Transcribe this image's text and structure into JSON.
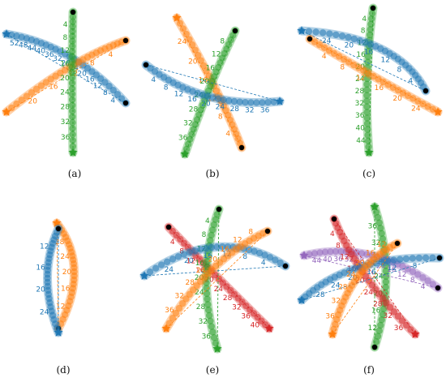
{
  "colors": {
    "blue": "#1f77b4",
    "orange": "#ff7f0e",
    "green": "#2ca02c",
    "red": "#d62728",
    "purple": "#9467bd",
    "black": "#000000"
  },
  "panels": [
    {
      "id": "a",
      "caption": "(a)",
      "paths": [
        {
          "color": "blue",
          "labels": [
            "52",
            "48",
            "44",
            "40",
            "36",
            "32",
            "28",
            "24",
            "20",
            "16",
            "12",
            "8",
            "4"
          ]
        },
        {
          "color": "orange",
          "labels": [
            "20",
            "16",
            "12",
            "8",
            "4"
          ]
        },
        {
          "color": "green",
          "labels": [
            "4",
            "8",
            "12",
            "16",
            "20",
            "24",
            "28",
            "32",
            "36"
          ]
        }
      ]
    },
    {
      "id": "b",
      "caption": "(b)",
      "paths": [
        {
          "color": "orange",
          "labels": [
            "24",
            "20",
            "16",
            "12",
            "8",
            "4"
          ]
        },
        {
          "color": "green",
          "labels": [
            "8",
            "12",
            "16",
            "20",
            "24",
            "28",
            "32",
            "36"
          ]
        },
        {
          "color": "blue",
          "labels": [
            "4",
            "8",
            "12",
            "16",
            "20",
            "24",
            "28",
            "32",
            "36"
          ]
        }
      ]
    },
    {
      "id": "c",
      "caption": "(c)",
      "paths": [
        {
          "color": "green",
          "labels": [
            "4",
            "8",
            "12",
            "16",
            "20",
            "24",
            "28",
            "32",
            "36",
            "40",
            "44"
          ]
        },
        {
          "color": "blue",
          "labels": [
            "24",
            "20",
            "16",
            "12",
            "8",
            "4"
          ]
        },
        {
          "color": "orange",
          "labels": [
            "4",
            "8",
            "12",
            "16",
            "20",
            "24"
          ]
        }
      ]
    },
    {
      "id": "d",
      "caption": "(d)",
      "paths": [
        {
          "color": "orange",
          "labels": [
            "28",
            "24",
            "20",
            "16",
            "12"
          ]
        },
        {
          "color": "blue",
          "labels": [
            "12",
            "16",
            "20",
            "24"
          ]
        }
      ]
    },
    {
      "id": "e",
      "caption": "(e)",
      "paths": [
        {
          "color": "red",
          "labels": [
            "4",
            "8",
            "12",
            "16",
            "20",
            "24",
            "28",
            "32",
            "36",
            "40"
          ]
        },
        {
          "color": "green",
          "labels": [
            "4",
            "8",
            "12",
            "16",
            "20",
            "24",
            "28",
            "32",
            "36"
          ]
        },
        {
          "color": "blue",
          "labels": [
            "24",
            "20",
            "16",
            "12",
            "8",
            "4"
          ]
        },
        {
          "color": "orange",
          "labels": [
            "8",
            "12",
            "16",
            "20",
            "24",
            "28",
            "32",
            "36"
          ]
        }
      ]
    },
    {
      "id": "f",
      "caption": "(f)",
      "paths": [
        {
          "color": "green",
          "labels": [
            "36",
            "32",
            "28",
            "24",
            "20",
            "16",
            "12"
          ]
        },
        {
          "color": "purple",
          "labels": [
            "44",
            "40",
            "36",
            "32",
            "28",
            "24",
            "20",
            "16",
            "12",
            "8",
            "4"
          ]
        },
        {
          "color": "red",
          "labels": [
            "4",
            "8",
            "12",
            "16",
            "20",
            "24",
            "28",
            "32",
            "36"
          ]
        },
        {
          "color": "blue",
          "labels": [
            "28",
            "24",
            "20",
            "16",
            "12",
            "8"
          ]
        },
        {
          "color": "orange",
          "labels": [
            "12",
            "16",
            "20",
            "24",
            "28",
            "32",
            "36"
          ]
        }
      ]
    }
  ]
}
